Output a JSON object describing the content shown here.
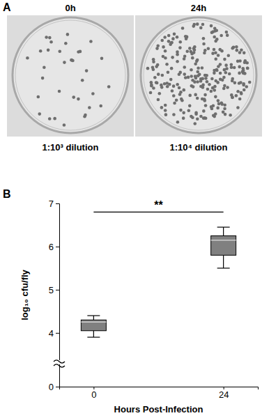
{
  "panel_a": {
    "label": "A",
    "plates": [
      {
        "title": "0h",
        "caption": "1:10³ dilution",
        "colonies": 35
      },
      {
        "title": "24h",
        "caption": "1:10⁴ dilution",
        "colonies": 260
      }
    ]
  },
  "chart_data": {
    "type": "box",
    "label": "B",
    "x_label": "Hours Post-Infection",
    "y_label": "log₁₀ cfu/fly",
    "categories": [
      "0",
      "24"
    ],
    "boxes": [
      {
        "min": 3.9,
        "q1": 4.05,
        "median": 4.25,
        "q3": 4.3,
        "max": 4.4
      },
      {
        "min": 5.5,
        "q1": 5.8,
        "median": 6.15,
        "q3": 6.25,
        "max": 6.45
      }
    ],
    "color": "#808080",
    "ylim": [
      0,
      7
    ],
    "yticks": [
      0,
      4,
      5,
      6,
      7
    ],
    "y_break": 3.4,
    "significance": {
      "label": "**",
      "between": [
        "0",
        "24"
      ],
      "value": 6.8
    }
  }
}
